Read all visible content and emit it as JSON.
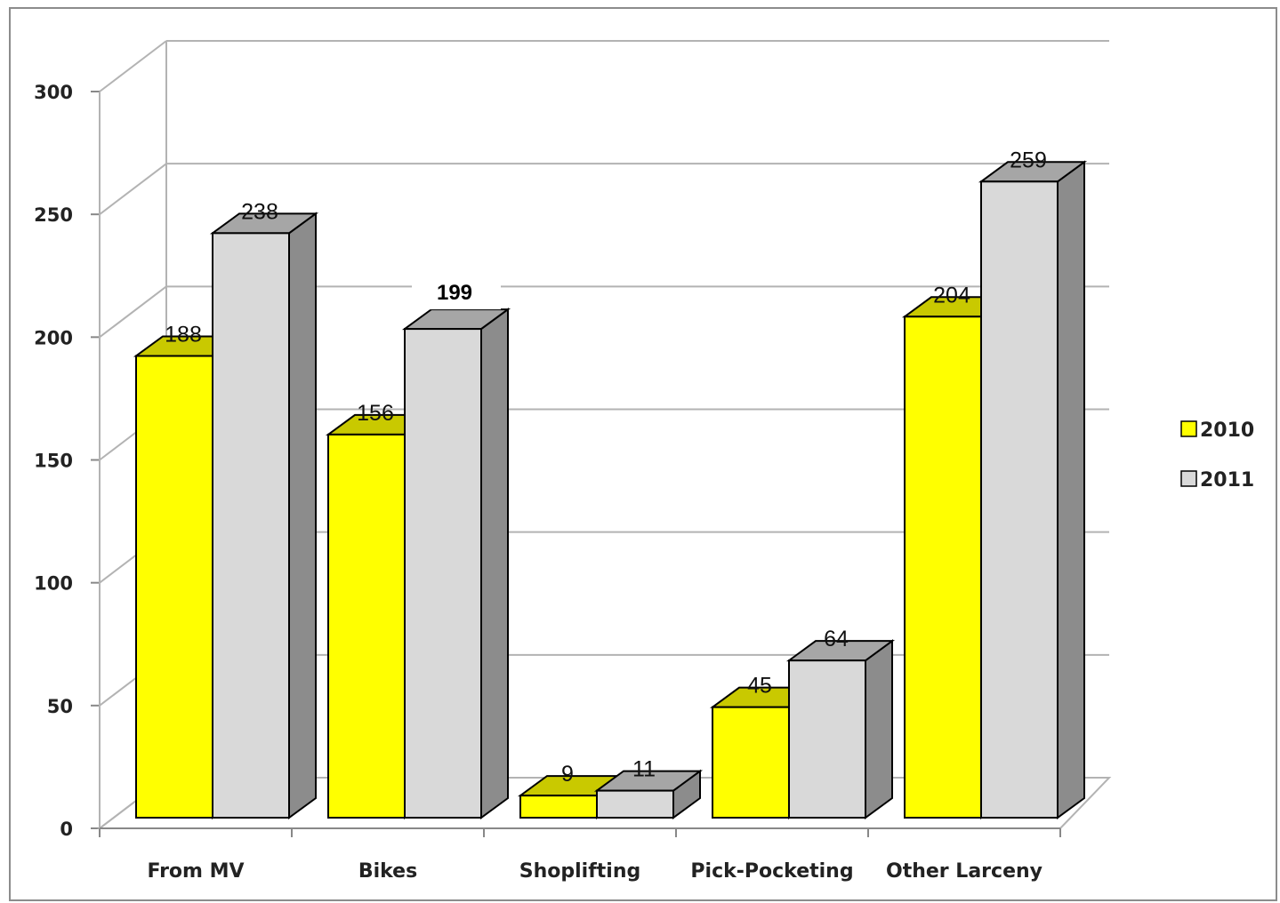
{
  "chart_data": {
    "type": "bar",
    "style": "3d-clustered-column",
    "categories": [
      "From MV",
      "Bikes",
      "Shoplifting",
      "Pick-Pocketing",
      "Other Larceny"
    ],
    "series": [
      {
        "name": "2010",
        "values": [
          188,
          156,
          9,
          45,
          204
        ],
        "color": "#ffff00"
      },
      {
        "name": "2011",
        "values": [
          238,
          199,
          11,
          64,
          259
        ],
        "color": "#d9d9d9"
      }
    ],
    "data_labels": {
      "2010": [
        "188",
        "156",
        "9",
        "45",
        "204"
      ],
      "2011": [
        "238",
        "199",
        "11",
        "64",
        "259"
      ]
    },
    "yticks": [
      "0",
      "50",
      "100",
      "150",
      "200",
      "250",
      "300"
    ],
    "ylim": [
      0,
      300
    ],
    "grid": true,
    "legend": "right",
    "title": "",
    "xlabel": "",
    "ylabel": ""
  }
}
